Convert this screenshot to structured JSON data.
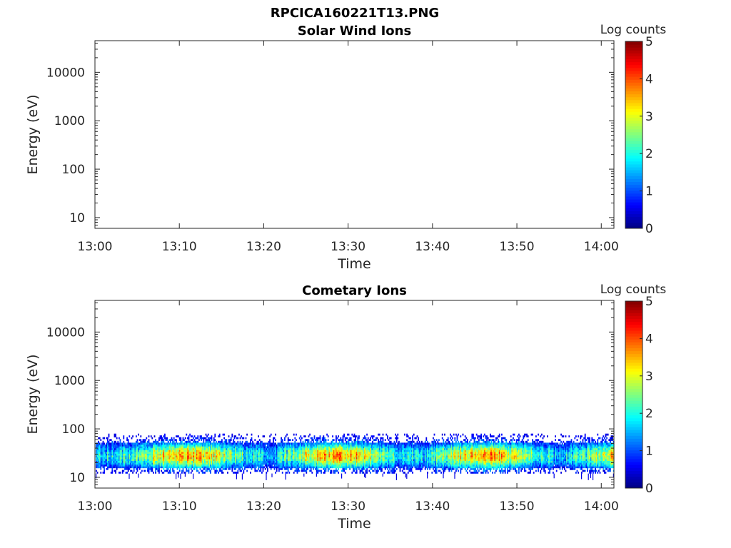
{
  "figure": {
    "title": "RPCICA160221T13.PNG"
  },
  "chart_data": [
    {
      "type": "heatmap",
      "title": "Solar Wind Ions",
      "xlabel": "Time",
      "ylabel": "Energy (eV)",
      "x_ticks": [
        "13:00",
        "13:10",
        "13:20",
        "13:30",
        "13:40",
        "13:50",
        "14:00"
      ],
      "xlim_minutes": [
        0,
        61.5
      ],
      "y_ticks": [
        10,
        100,
        1000,
        10000
      ],
      "y_tick_labels": [
        "10",
        "100",
        "1000",
        "10000"
      ],
      "ylim": [
        6,
        45000
      ],
      "y_scale": "log",
      "colorbar": {
        "label": "Log counts",
        "range": [
          0,
          5
        ],
        "ticks": [
          "0",
          "1",
          "2",
          "3",
          "4",
          "5"
        ],
        "colormap": "jet"
      },
      "data": "empty"
    },
    {
      "type": "heatmap",
      "title": "Cometary Ions",
      "xlabel": "Time",
      "ylabel": "Energy (eV)",
      "x_ticks": [
        "13:00",
        "13:10",
        "13:20",
        "13:30",
        "13:40",
        "13:50",
        "14:00"
      ],
      "xlim_minutes": [
        0,
        61.5
      ],
      "y_ticks": [
        10,
        100,
        1000,
        10000
      ],
      "y_tick_labels": [
        "10",
        "100",
        "1000",
        "10000"
      ],
      "ylim": [
        6,
        45000
      ],
      "y_scale": "log",
      "colorbar": {
        "label": "Log counts",
        "range": [
          0,
          5
        ],
        "ticks": [
          "0",
          "1",
          "2",
          "3",
          "4",
          "5"
        ],
        "colormap": "jet"
      },
      "band": {
        "energy_range_eV": [
          12,
          80
        ],
        "peak_energy_eV": 28,
        "peak_log_counts": 3.6,
        "time_range_minutes": [
          0,
          61.5
        ]
      }
    }
  ]
}
